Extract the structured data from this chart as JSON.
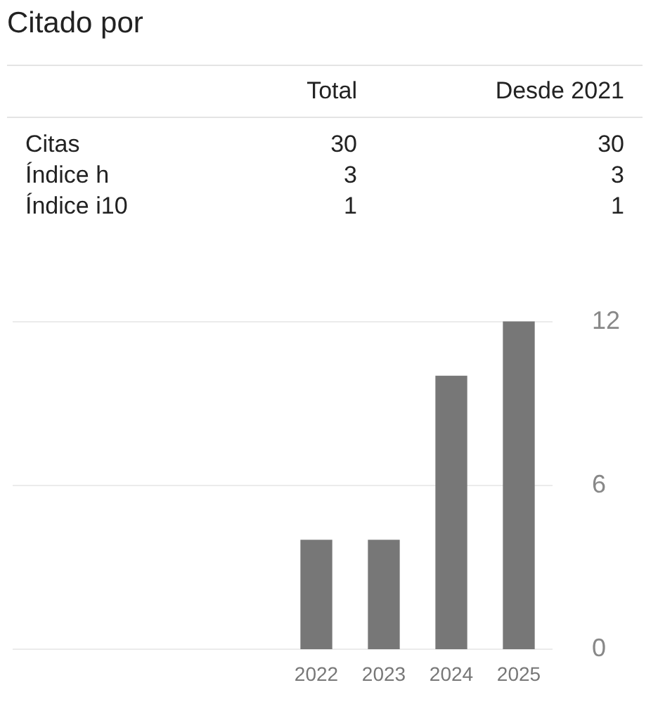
{
  "chart_data": {
    "type": "bar",
    "title": "Citado por",
    "annotations": [
      "Total",
      "Desde 2021",
      "Citas",
      "30",
      "30",
      "Índice h",
      "3",
      "3",
      "Índice i10",
      "1",
      "1"
    ],
    "categories": [
      null,
      null,
      null,
      null,
      "2022",
      "2023",
      "2024",
      "2025"
    ],
    "values": [
      null,
      null,
      null,
      null,
      4,
      4,
      10,
      12
    ],
    "color": "#777777",
    "ylim": [
      0,
      12
    ],
    "yticks": [
      0,
      6,
      12
    ],
    "grid": "y",
    "legend": false
  }
}
